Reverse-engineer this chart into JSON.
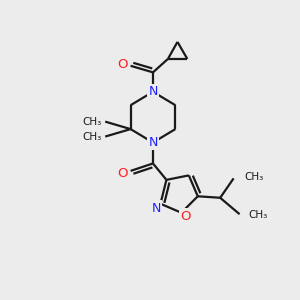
{
  "bg_color": "#ececec",
  "bond_color": "#1a1a1a",
  "N_color": "#2020ff",
  "O_color": "#ff2020",
  "line_width": 1.6,
  "figsize": [
    3.0,
    3.0
  ],
  "dpi": 100,
  "xlim": [
    0,
    10
  ],
  "ylim": [
    0,
    10
  ]
}
